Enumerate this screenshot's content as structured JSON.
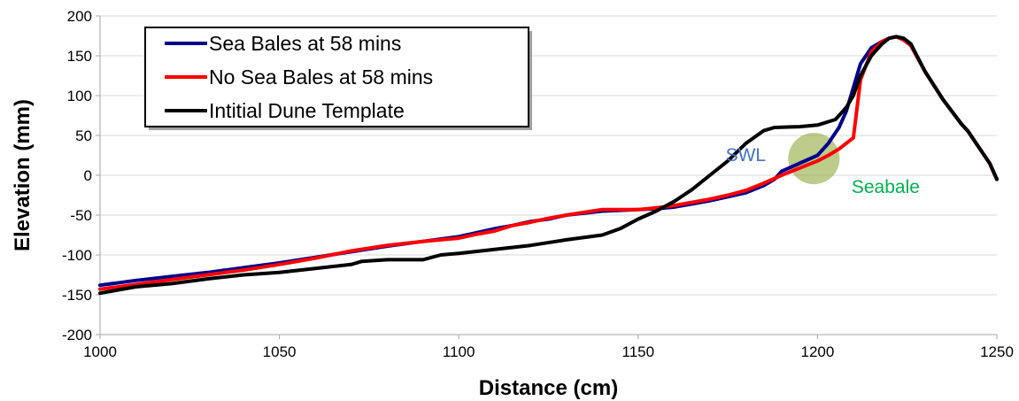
{
  "chart_data": {
    "type": "line",
    "title": "",
    "xlabel": "Distance (cm)",
    "ylabel": "Elevation (mm)",
    "xlim": [
      1000,
      1250
    ],
    "ylim": [
      -200,
      200
    ],
    "xticks": [
      1000,
      1050,
      1100,
      1150,
      1200,
      1250
    ],
    "yticks": [
      -200,
      -150,
      -100,
      -50,
      0,
      50,
      100,
      150,
      200
    ],
    "grid": "horizontal",
    "legend_position": "top-left",
    "series": [
      {
        "name": "Sea Bales at 58 mins",
        "color": "#00008b",
        "x": [
          1000,
          1010,
          1020,
          1030,
          1040,
          1050,
          1060,
          1070,
          1080,
          1090,
          1100,
          1105,
          1110,
          1115,
          1120,
          1125,
          1130,
          1140,
          1150,
          1155,
          1160,
          1165,
          1170,
          1175,
          1180,
          1185,
          1188,
          1190,
          1195,
          1200,
          1203,
          1206,
          1208,
          1210,
          1212,
          1215,
          1218,
          1220,
          1222,
          1224,
          1226,
          1230,
          1235,
          1240,
          1242,
          1245,
          1248,
          1250
        ],
        "y": [
          -138,
          -132,
          -127,
          -122,
          -116,
          -110,
          -103,
          -96,
          -89,
          -83,
          -77,
          -72,
          -67,
          -63,
          -58,
          -55,
          -50,
          -45,
          -43,
          -42,
          -40,
          -36,
          -32,
          -27,
          -22,
          -13,
          -5,
          5,
          15,
          25,
          40,
          60,
          80,
          110,
          140,
          160,
          168,
          172,
          174,
          170,
          163,
          130,
          95,
          65,
          55,
          35,
          15,
          -5
        ]
      },
      {
        "name": "No Sea Bales at 58 mins",
        "color": "#ff0000",
        "x": [
          1000,
          1010,
          1020,
          1030,
          1040,
          1050,
          1060,
          1070,
          1080,
          1090,
          1100,
          1105,
          1110,
          1115,
          1120,
          1125,
          1130,
          1140,
          1150,
          1155,
          1160,
          1165,
          1170,
          1175,
          1180,
          1185,
          1190,
          1195,
          1200,
          1203,
          1206,
          1208,
          1210,
          1212,
          1215,
          1218,
          1220,
          1222,
          1224,
          1226,
          1230,
          1235,
          1240,
          1242,
          1245,
          1248,
          1250
        ],
        "y": [
          -143,
          -137,
          -131,
          -125,
          -119,
          -112,
          -104,
          -95,
          -88,
          -83,
          -79,
          -74,
          -70,
          -63,
          -59,
          -54,
          -50,
          -43,
          -43,
          -41,
          -38,
          -34,
          -30,
          -25,
          -19,
          -10,
          0,
          9,
          18,
          25,
          33,
          40,
          47,
          120,
          155,
          168,
          172,
          174,
          170,
          163,
          130,
          95,
          65,
          55,
          35,
          15,
          -5
        ]
      },
      {
        "name": "Intitial Dune Template",
        "color": "#000000",
        "x": [
          1000,
          1010,
          1020,
          1030,
          1040,
          1050,
          1060,
          1070,
          1073,
          1080,
          1090,
          1095,
          1100,
          1110,
          1120,
          1130,
          1140,
          1145,
          1150,
          1155,
          1160,
          1165,
          1170,
          1175,
          1180,
          1185,
          1188,
          1195,
          1200,
          1205,
          1208,
          1210,
          1212,
          1215,
          1218,
          1220,
          1222,
          1224,
          1226,
          1230,
          1235,
          1240,
          1242,
          1245,
          1248,
          1250
        ],
        "y": [
          -148,
          -140,
          -136,
          -130,
          -125,
          -122,
          -117,
          -112,
          -108,
          -106,
          -106,
          -100,
          -98,
          -93,
          -88,
          -81,
          -75,
          -67,
          -55,
          -45,
          -33,
          -18,
          0,
          18,
          40,
          56,
          60,
          61,
          63,
          70,
          85,
          100,
          125,
          150,
          165,
          172,
          174,
          172,
          165,
          130,
          95,
          65,
          55,
          35,
          15,
          -5
        ]
      }
    ],
    "annotations": [
      {
        "text": "SWL",
        "x": 1180,
        "y": 18,
        "color": "#4472c4"
      },
      {
        "text": "Seabale",
        "x": 1219,
        "y": -22,
        "color": "#00b050"
      }
    ],
    "highlight": {
      "x": 1199,
      "y": 21,
      "color": "#8faa3c"
    }
  }
}
